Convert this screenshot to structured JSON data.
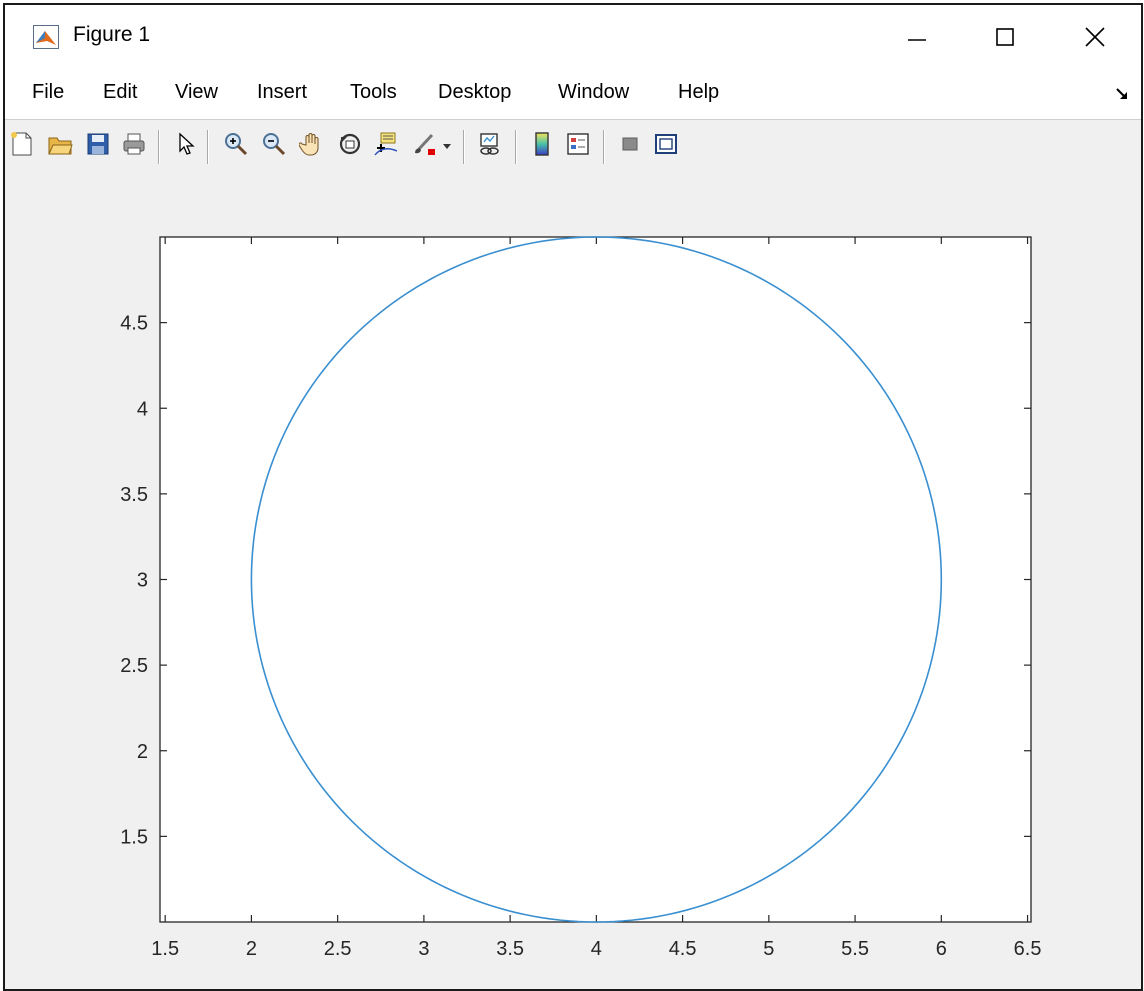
{
  "window": {
    "title": "Figure 1",
    "app_icon": "matlab-logo-icon",
    "controls": [
      "minimize-icon",
      "maximize-icon",
      "close-icon"
    ]
  },
  "menubar": {
    "items": [
      "File",
      "Edit",
      "View",
      "Insert",
      "Tools",
      "Desktop",
      "Window",
      "Help"
    ],
    "dock_icon": "dock-arrow-icon"
  },
  "toolbar": {
    "buttons": [
      "new-figure-icon",
      "open-file-icon",
      "save-icon",
      "print-icon",
      "pointer-icon",
      "zoom-in-icon",
      "zoom-out-icon",
      "pan-icon",
      "rotate-3d-icon",
      "data-cursor-icon",
      "brush-icon",
      "link-plot-icon",
      "colorbar-icon",
      "legend-icon",
      "hide-plot-tools-icon",
      "show-plot-tools-icon"
    ]
  },
  "colors": {
    "line": "#3a8fd0",
    "axes_bg": "#ffffff",
    "figure_bg": "#f0f0f0",
    "axis_color": "#262626"
  },
  "chart_data": {
    "type": "line",
    "title": "",
    "xlabel": "",
    "ylabel": "",
    "xlim": [
      1.47,
      6.52
    ],
    "ylim": [
      1.0,
      5.0
    ],
    "xticks": [
      1.5,
      2,
      2.5,
      3,
      3.5,
      4,
      4.5,
      5,
      5.5,
      6,
      6.5
    ],
    "xtick_labels": [
      "1.5",
      "2",
      "2.5",
      "3",
      "3.5",
      "4",
      "4.5",
      "5",
      "5.5",
      "6",
      "6.5"
    ],
    "yticks": [
      1.5,
      2,
      2.5,
      3,
      3.5,
      4,
      4.5
    ],
    "ytick_labels": [
      "1.5",
      "2",
      "2.5",
      "3",
      "3.5",
      "4",
      "4.5"
    ],
    "grid": false,
    "box": true,
    "series": [
      {
        "shape": "circle",
        "center": [
          4,
          3
        ],
        "radius": 2,
        "x": [
          6,
          5.732,
          5,
          4,
          3,
          2.268,
          2,
          2.268,
          3,
          4,
          5,
          5.732,
          6
        ],
        "y": [
          3,
          4,
          4.732,
          5,
          4.732,
          4,
          3,
          2,
          1.268,
          1,
          1.268,
          2,
          3
        ]
      }
    ]
  }
}
